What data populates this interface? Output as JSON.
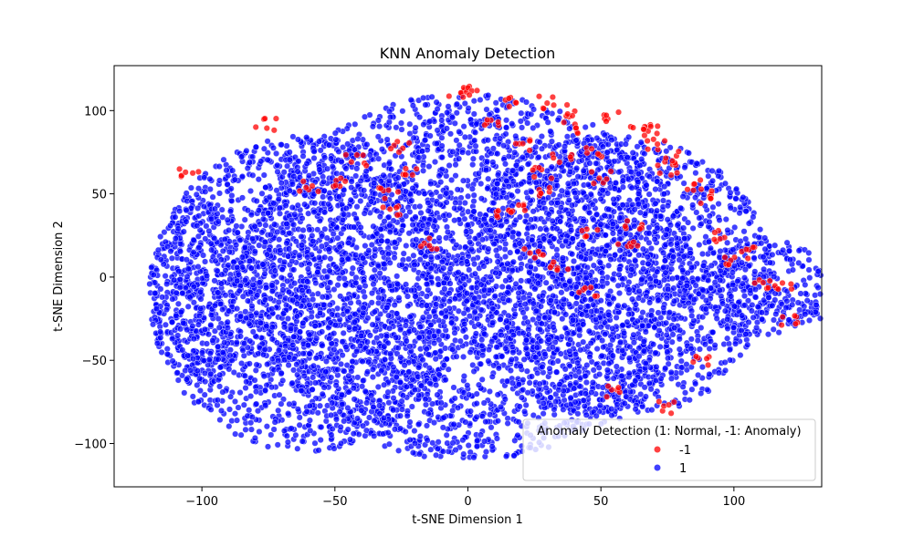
{
  "chart_data": {
    "type": "scatter",
    "title": "KNN Anomaly Detection",
    "xlabel": "t-SNE Dimension 1",
    "ylabel": "t-SNE Dimension 2",
    "xlim": [
      -133,
      133
    ],
    "ylim": [
      -126,
      127
    ],
    "xticks": [
      -100,
      -50,
      0,
      50,
      100
    ],
    "yticks": [
      -100,
      -50,
      0,
      50,
      100
    ],
    "xtick_labels": [
      "−100",
      "−50",
      "0",
      "50",
      "100"
    ],
    "ytick_labels": [
      "−100",
      "−50",
      "0",
      "50",
      "100"
    ],
    "grid": false,
    "legend": {
      "title": "Anomaly Detection (1: Normal, -1: Anomaly)",
      "placement": "lower-right",
      "entries": [
        {
          "label": "-1",
          "color": "#ff0000"
        },
        {
          "label": "1",
          "color": "#0000ff"
        }
      ]
    },
    "series": [
      {
        "name": "-1",
        "color": "#ff0000",
        "sample_points": [
          [
            -105,
            62
          ],
          [
            -76,
            92
          ],
          [
            -30,
            50
          ],
          [
            -25,
            78
          ],
          [
            -22,
            62
          ],
          [
            -5,
            112
          ],
          [
            2,
            113
          ],
          [
            10,
            95
          ],
          [
            15,
            105
          ],
          [
            30,
            105
          ],
          [
            35,
            70
          ],
          [
            40,
            90
          ],
          [
            55,
            95
          ],
          [
            65,
            88
          ],
          [
            70,
            80
          ],
          [
            75,
            65
          ],
          [
            85,
            55
          ],
          [
            90,
            48
          ],
          [
            28,
            62
          ],
          [
            48,
            75
          ],
          [
            62,
            30
          ],
          [
            100,
            10
          ],
          [
            110,
            -5
          ],
          [
            120,
            -25
          ],
          [
            75,
            -78
          ],
          [
            88,
            -50
          ],
          [
            -50,
            58
          ],
          [
            12,
            38
          ],
          [
            20,
            40
          ],
          [
            25,
            15
          ],
          [
            35,
            5
          ],
          [
            45,
            -10
          ],
          [
            60,
            20
          ],
          [
            50,
            60
          ],
          [
            78,
            72
          ],
          [
            45,
            28
          ],
          [
            55,
            -68
          ],
          [
            95,
            25
          ],
          [
            105,
            15
          ],
          [
            118,
            -5
          ],
          [
            40,
            100
          ],
          [
            22,
            80
          ],
          [
            -15,
            20
          ],
          [
            -28,
            40
          ],
          [
            -60,
            55
          ],
          [
            -42,
            70
          ],
          [
            68,
            90
          ],
          [
            30,
            50
          ]
        ]
      },
      {
        "name": "1",
        "color": "#0000ff",
        "regions": [
          {
            "cx": -60,
            "cy": -10,
            "rx": 60,
            "ry": 95
          },
          {
            "cx": 0,
            "cy": 0,
            "rx": 85,
            "ry": 110
          },
          {
            "cx": 55,
            "cy": 0,
            "rx": 60,
            "ry": 85
          },
          {
            "cx": -100,
            "cy": -10,
            "rx": 20,
            "ry": 55
          },
          {
            "cx": 110,
            "cy": -5,
            "rx": 25,
            "ry": 30
          },
          {
            "cx": 125,
            "cy": -20,
            "rx": 10,
            "ry": 8
          }
        ]
      }
    ]
  }
}
